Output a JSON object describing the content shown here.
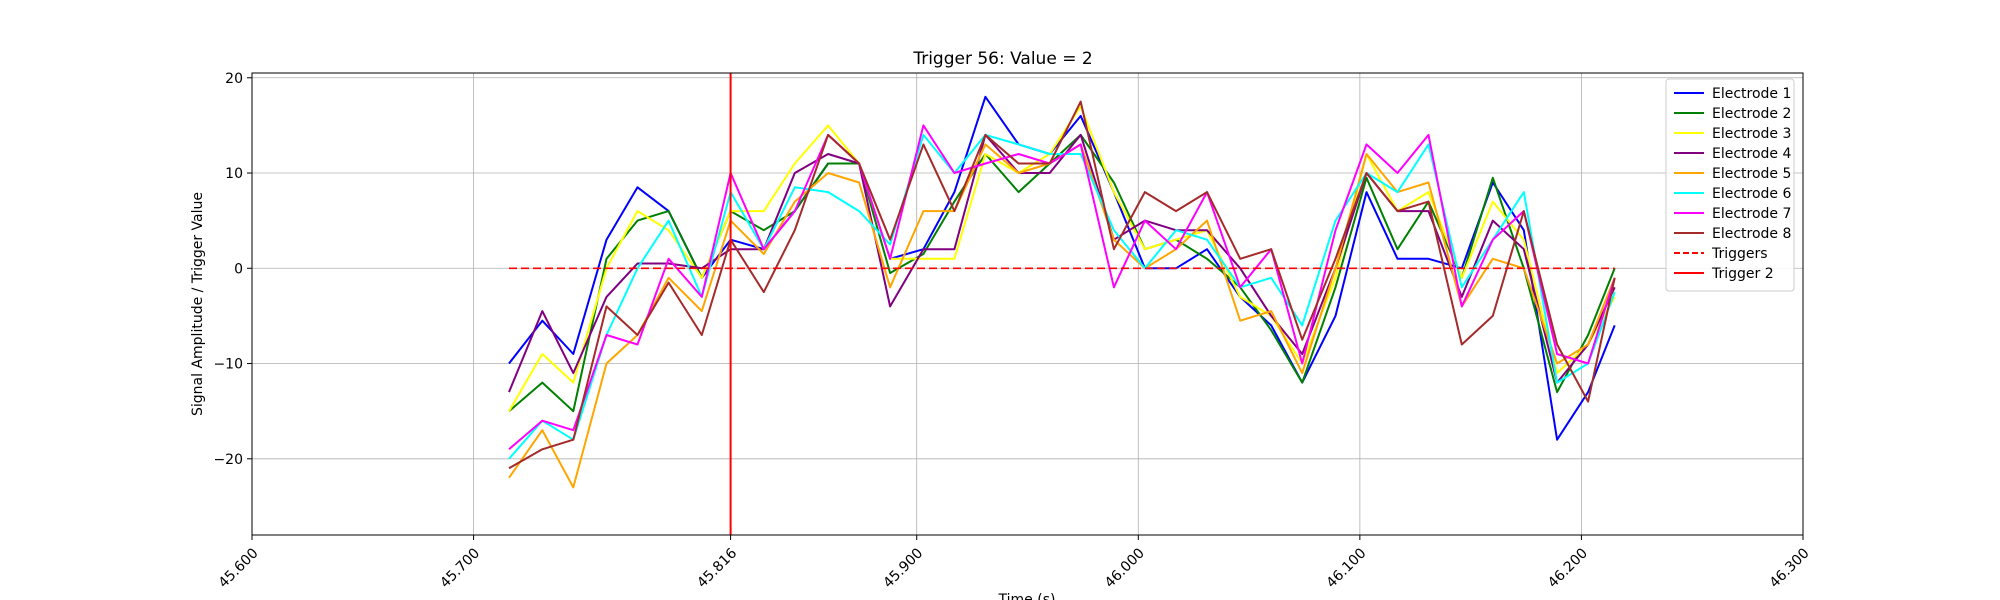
{
  "chart_data": {
    "type": "line",
    "title": "Trigger 56: Value = 2",
    "xlabel": "Time (s)",
    "ylabel": "Signal Amplitude / Trigger Value",
    "xlim": [
      45.6,
      46.3
    ],
    "ylim": [
      -28,
      20.5
    ],
    "xticks": [
      45.6,
      45.7,
      45.816,
      45.9,
      46.0,
      46.1,
      46.2,
      46.3
    ],
    "xtick_labels": [
      "45.600",
      "45.700",
      "45.816",
      "45.900",
      "46.000",
      "46.100",
      "46.200",
      "46.300"
    ],
    "yticks": [
      -20,
      -10,
      0,
      10,
      20
    ],
    "ytick_labels": [
      "−20",
      "−10",
      "0",
      "10",
      "20"
    ],
    "grid": true,
    "legend_position": "top-right",
    "x": [
      45.716,
      45.731,
      45.745,
      45.76,
      45.774,
      45.788,
      45.803,
      45.816,
      45.831,
      45.845,
      45.86,
      45.874,
      45.888,
      45.903,
      45.917,
      45.931,
      45.946,
      45.96,
      45.974,
      45.989,
      46.003,
      46.017,
      46.031,
      46.046,
      46.06,
      46.074,
      46.089,
      46.103,
      46.117,
      46.131,
      46.146,
      46.16,
      46.174,
      46.189,
      46.203,
      46.215
    ],
    "series": [
      {
        "name": "Electrode 1",
        "color": "#0000ff",
        "style": "solid",
        "values": [
          -10,
          -5.5,
          -9,
          3,
          8.5,
          6,
          -1,
          3,
          2,
          6,
          11,
          11,
          1,
          2,
          8,
          18,
          13,
          12,
          16,
          8,
          0,
          0,
          2,
          -3,
          -6,
          -12,
          -5,
          8,
          1,
          1,
          0,
          9,
          4,
          -18,
          -13,
          -6
        ]
      },
      {
        "name": "Electrode 2",
        "color": "#008000",
        "style": "solid",
        "values": [
          -15,
          -12,
          -15,
          1,
          5,
          6,
          -1,
          6,
          4,
          6,
          11,
          11,
          -0.5,
          1.5,
          7,
          12,
          8,
          11,
          14,
          9,
          2,
          3,
          1,
          -2,
          -6.5,
          -12,
          -2,
          9.5,
          2,
          7,
          -1,
          9.5,
          0,
          -13,
          -7,
          0
        ]
      },
      {
        "name": "Electrode 3",
        "color": "#ffff00",
        "style": "solid",
        "values": [
          -15,
          -9,
          -12,
          0,
          6,
          4,
          -1,
          6,
          6,
          11,
          15,
          11,
          1,
          1,
          1,
          12,
          10,
          12,
          17,
          8,
          2,
          3,
          4,
          -3,
          -5,
          -10,
          -1,
          12,
          6,
          8,
          -1,
          7,
          3,
          -11,
          -8,
          -3
        ]
      },
      {
        "name": "Electrode 4",
        "color": "#800080",
        "style": "solid",
        "values": [
          -13,
          -4.5,
          -11,
          -3,
          0.5,
          0.5,
          0,
          2,
          2,
          10,
          12,
          11,
          -4,
          2,
          2,
          14,
          10,
          10,
          14,
          3,
          5,
          4,
          4,
          0,
          -5,
          -9,
          0,
          10,
          6,
          6,
          -3,
          5,
          2,
          -12,
          -8,
          -2
        ]
      },
      {
        "name": "Electrode 5",
        "color": "#ffa500",
        "style": "solid",
        "values": [
          -22,
          -17,
          -23,
          -10,
          -7,
          -1,
          -4.5,
          5,
          1.5,
          7,
          10,
          9,
          -2,
          6,
          6,
          13,
          10,
          11,
          13,
          3,
          0,
          2,
          5,
          -5.5,
          -4.5,
          -11,
          0,
          12,
          8,
          9,
          -4,
          1,
          0,
          -10,
          -8,
          -1
        ]
      },
      {
        "name": "Electrode 6",
        "color": "#00ffff",
        "style": "solid",
        "values": [
          -20,
          -16,
          -18,
          -7,
          0,
          5,
          -3,
          8,
          2,
          8.5,
          8,
          6,
          2.5,
          14,
          10,
          14,
          13,
          12,
          12,
          4,
          0,
          4,
          3,
          -2,
          -1,
          -6,
          5,
          10,
          8,
          13,
          -2,
          3,
          8,
          -12,
          -10,
          -2.5
        ]
      },
      {
        "name": "Electrode 7",
        "color": "#ff00ff",
        "style": "solid",
        "values": [
          -19,
          -16,
          -17,
          -7,
          -8,
          1,
          -3,
          10,
          2,
          6,
          14,
          11,
          1,
          15,
          10,
          11,
          12,
          11,
          13,
          -2,
          5,
          2,
          8,
          -2,
          2,
          -10,
          4,
          13,
          10,
          14,
          -4,
          3,
          6,
          -9,
          -10,
          -1
        ]
      },
      {
        "name": "Electrode 8",
        "color": "#a52a2a",
        "style": "solid",
        "values": [
          -21,
          -19,
          -18,
          -4,
          -7,
          -1.5,
          -7,
          3,
          -2.5,
          4,
          14,
          11,
          3,
          13,
          6,
          14,
          11,
          11,
          17.5,
          2,
          8,
          6,
          8,
          1,
          2,
          -7.5,
          1,
          10,
          6,
          7,
          -8,
          -5,
          6,
          -8,
          -14,
          -1
        ]
      },
      {
        "name": "Triggers",
        "color": "#ff0000",
        "style": "dashed",
        "x": [
          45.716,
          46.215
        ],
        "values": [
          0,
          0
        ]
      }
    ],
    "vlines": [
      {
        "name": "Trigger 2",
        "color": "#ff0000",
        "x": 45.816
      }
    ]
  }
}
